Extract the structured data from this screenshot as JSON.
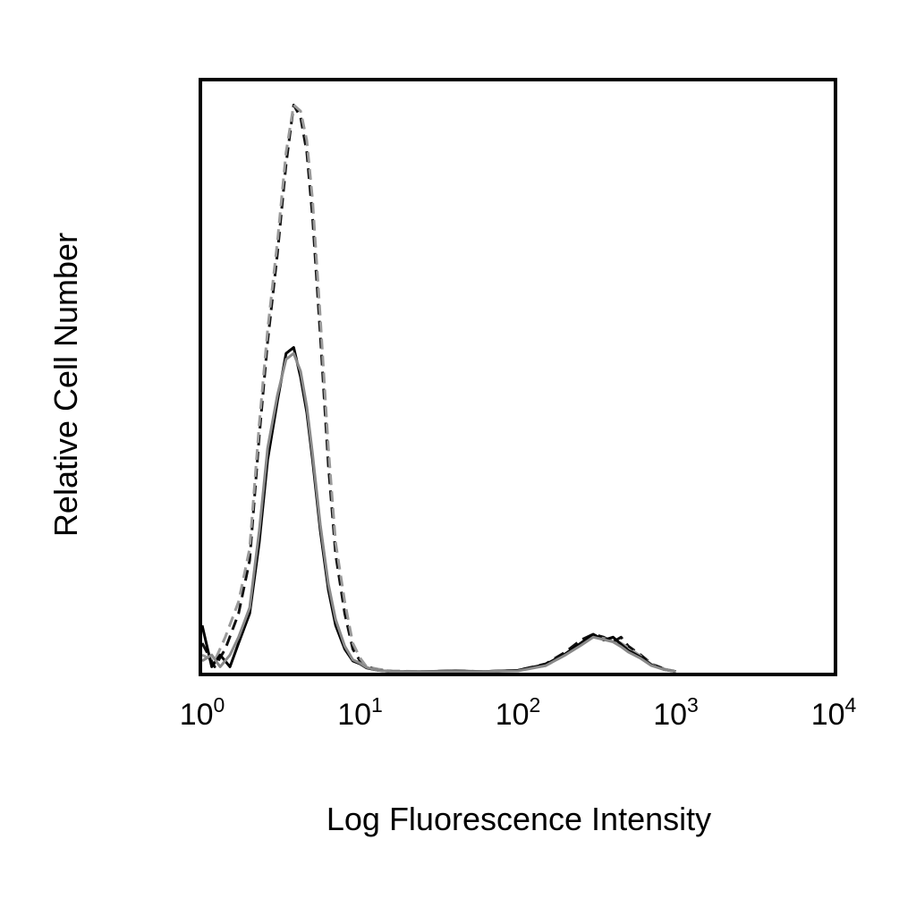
{
  "chart_data": {
    "type": "line",
    "subtype": "flow-cytometry-histogram",
    "xlabel": "Log Fluorescence Intensity",
    "ylabel": "Relative Cell Number",
    "x_scale": "log",
    "xlim": [
      1,
      10000
    ],
    "ylim": [
      0,
      100
    ],
    "x_ticks": [
      {
        "base": "10",
        "exp": "0",
        "value": 1
      },
      {
        "base": "10",
        "exp": "1",
        "value": 10
      },
      {
        "base": "10",
        "exp": "2",
        "value": 100
      },
      {
        "base": "10",
        "exp": "3",
        "value": 1000
      },
      {
        "base": "10",
        "exp": "4",
        "value": 10000
      }
    ],
    "grid": false,
    "legend": "none",
    "series": [
      {
        "style": "dashed-black",
        "color": "#111111",
        "x": [
          1.0,
          1.2,
          1.4,
          1.7,
          2.0,
          2.3,
          2.6,
          3.0,
          3.4,
          3.8,
          4.2,
          4.6,
          5.0,
          5.6,
          6.3,
          7.0,
          8.0,
          9.0,
          10.0,
          11.0,
          13.0,
          16.0,
          25.0,
          40.0,
          60.0,
          100.0,
          150.0,
          200.0,
          250.0,
          300.0,
          350.0,
          400.0,
          450.0,
          500.0,
          600.0,
          700.0,
          850.0,
          1000.0
        ],
        "y": [
          5,
          1,
          4,
          10,
          19,
          40,
          56,
          71,
          86,
          96,
          94,
          88,
          77,
          57,
          35,
          20,
          10,
          4,
          2,
          1,
          0.5,
          0.2,
          0.2,
          0.3,
          0.2,
          0.4,
          1.5,
          3.5,
          5.5,
          6.5,
          6.0,
          5.2,
          6.0,
          4.5,
          3.0,
          1.5,
          0.6,
          0.2
        ]
      },
      {
        "style": "dashed-gray",
        "color": "#9a9a9a",
        "x": [
          1.0,
          1.2,
          1.4,
          1.7,
          2.0,
          2.3,
          2.6,
          3.0,
          3.4,
          3.8,
          4.2,
          4.6,
          5.0,
          5.6,
          6.3,
          7.0,
          8.0,
          9.0,
          10.0,
          11.0,
          13.0,
          16.0,
          25.0,
          40.0,
          60.0,
          100.0,
          150.0,
          200.0,
          250.0,
          300.0,
          350.0,
          400.0,
          450.0,
          500.0,
          600.0,
          700.0,
          850.0,
          1000.0
        ],
        "y": [
          3,
          2,
          6,
          12,
          21,
          42,
          58,
          73,
          88,
          96,
          95,
          90,
          80,
          60,
          38,
          22,
          12,
          5,
          2.5,
          1,
          0.6,
          0.3,
          0.2,
          0.3,
          0.2,
          0.4,
          1.2,
          3.0,
          5.0,
          6.0,
          5.8,
          5.5,
          5.0,
          4.2,
          2.8,
          1.4,
          0.6,
          0.2
        ]
      },
      {
        "style": "solid-black",
        "color": "#000000",
        "x": [
          1.0,
          1.15,
          1.3,
          1.5,
          1.7,
          2.0,
          2.3,
          2.6,
          3.0,
          3.4,
          3.8,
          4.2,
          4.6,
          5.0,
          5.6,
          6.3,
          7.0,
          8.0,
          9.0,
          10.0,
          11.0,
          13.0,
          16.0,
          25.0,
          40.0,
          60.0,
          100.0,
          150.0,
          200.0,
          250.0,
          300.0,
          350.0,
          400.0,
          450.0,
          500.0,
          600.0,
          700.0,
          850.0,
          1000.0
        ],
        "y": [
          8,
          1,
          3,
          1,
          5,
          10,
          22,
          36,
          46,
          54,
          55,
          50,
          44,
          36,
          24,
          14,
          8,
          4,
          2,
          1.5,
          0.8,
          0.4,
          0.2,
          0.2,
          0.3,
          0.2,
          0.4,
          1.4,
          3.2,
          5.0,
          6.5,
          5.5,
          6.0,
          4.8,
          3.8,
          2.6,
          1.3,
          0.5,
          0.2
        ]
      },
      {
        "style": "solid-gray",
        "color": "#8a8a8a",
        "x": [
          1.0,
          1.15,
          1.3,
          1.5,
          1.7,
          2.0,
          2.3,
          2.6,
          3.0,
          3.4,
          3.8,
          4.2,
          4.6,
          5.0,
          5.6,
          6.3,
          7.0,
          8.0,
          9.0,
          10.0,
          11.0,
          13.0,
          16.0,
          25.0,
          40.0,
          60.0,
          100.0,
          150.0,
          200.0,
          250.0,
          300.0,
          350.0,
          400.0,
          450.0,
          500.0,
          600.0,
          700.0,
          850.0,
          1000.0
        ],
        "y": [
          2,
          3,
          1,
          3,
          6,
          11,
          24,
          38,
          47,
          53,
          54,
          51,
          45,
          37,
          25,
          15,
          9,
          4.5,
          2.2,
          1.6,
          0.9,
          0.4,
          0.2,
          0.2,
          0.2,
          0.2,
          0.3,
          1.2,
          3.0,
          4.6,
          6.0,
          5.6,
          5.2,
          4.4,
          3.5,
          2.4,
          1.2,
          0.5,
          0.2
        ]
      }
    ]
  }
}
